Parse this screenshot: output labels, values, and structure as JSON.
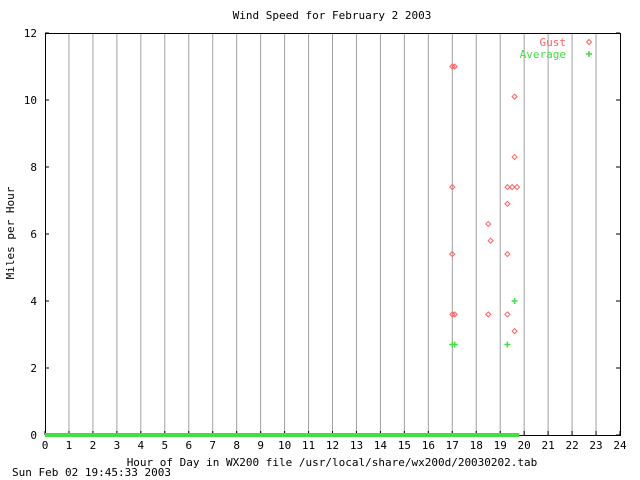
{
  "chart_data": {
    "type": "scatter",
    "title": "Wind Speed for February  2 2003",
    "xlabel": "Hour of Day in WX200 file /usr/local/share/wx200d/20030202.tab",
    "ylabel": "Miles per Hour",
    "footer": "Sun Feb 02 19:45:33 2003",
    "xlim": [
      0,
      24
    ],
    "ylim": [
      0,
      12
    ],
    "xticks": [
      "0",
      "1",
      "2",
      "3",
      "4",
      "5",
      "6",
      "7",
      "8",
      "9",
      "10",
      "11",
      "12",
      "13",
      "14",
      "15",
      "16",
      "17",
      "18",
      "19",
      "20",
      "21",
      "22",
      "23",
      "24"
    ],
    "yticks": [
      "0",
      "2",
      "4",
      "6",
      "8",
      "10",
      "12"
    ],
    "grid": true,
    "legend_position": "top-right",
    "series": [
      {
        "name": "Gust",
        "marker": "diamond",
        "color": "#ff6060",
        "points": [
          [
            17.0,
            11.0
          ],
          [
            17.1,
            11.0
          ],
          [
            17.0,
            7.4
          ],
          [
            17.0,
            5.4
          ],
          [
            17.0,
            3.6
          ],
          [
            17.1,
            3.6
          ],
          [
            18.5,
            6.3
          ],
          [
            18.6,
            5.8
          ],
          [
            18.5,
            3.6
          ],
          [
            19.6,
            10.1
          ],
          [
            19.6,
            8.3
          ],
          [
            19.3,
            7.4
          ],
          [
            19.5,
            7.4
          ],
          [
            19.7,
            7.4
          ],
          [
            19.3,
            6.9
          ],
          [
            19.3,
            5.4
          ],
          [
            19.3,
            3.6
          ],
          [
            19.6,
            3.1
          ]
        ]
      },
      {
        "name": "Average",
        "marker": "plus",
        "color": "#40e040",
        "points": [
          [
            17.0,
            2.7
          ],
          [
            17.1,
            2.7
          ],
          [
            19.3,
            2.7
          ],
          [
            19.6,
            4.0
          ]
        ],
        "baseline": {
          "from": 0,
          "to": 19.8,
          "value": 0
        }
      }
    ]
  }
}
